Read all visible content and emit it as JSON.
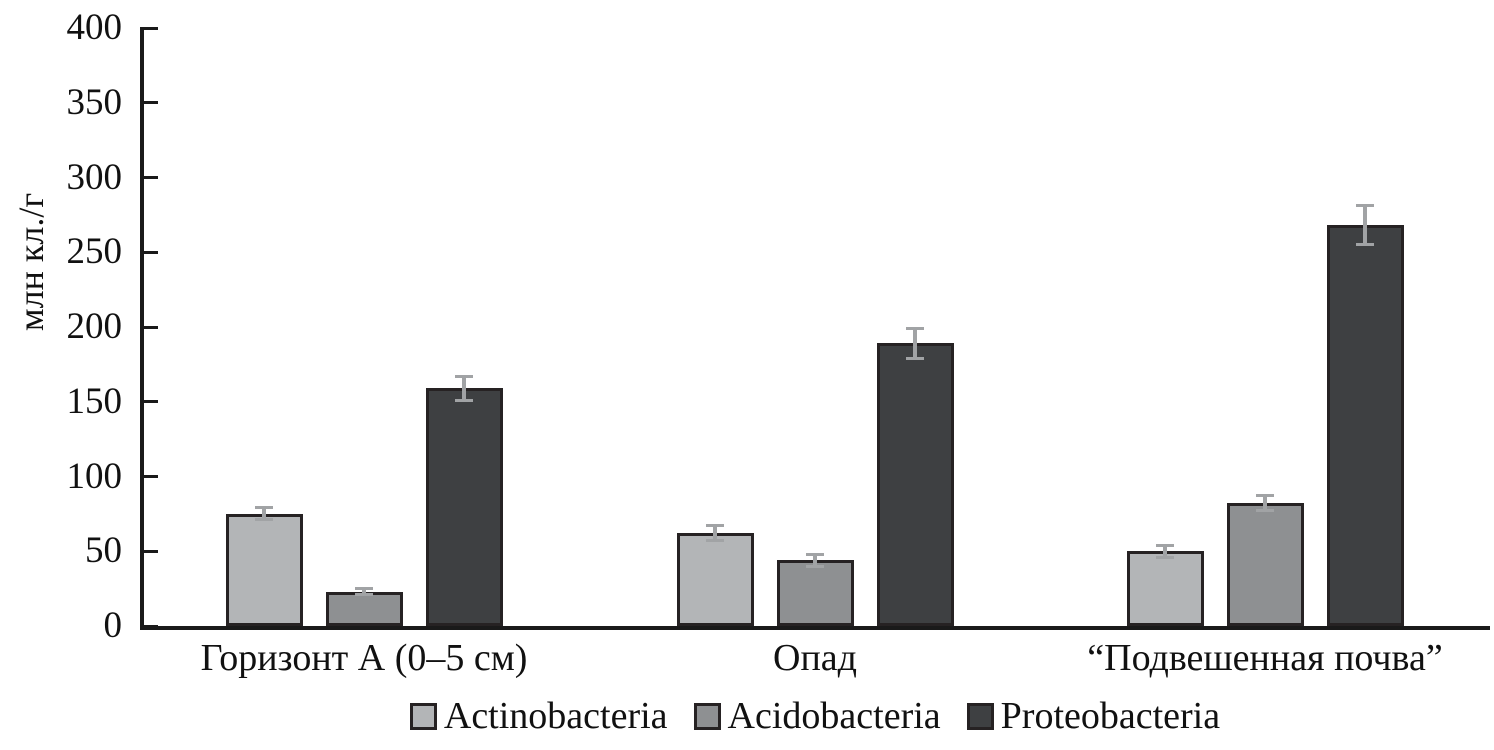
{
  "chart_data": {
    "type": "bar",
    "title": "",
    "ylabel": "млн кл./г",
    "xlabel": "",
    "ylim": [
      0,
      400
    ],
    "yticks": [
      0,
      50,
      100,
      150,
      200,
      250,
      300,
      350,
      400
    ],
    "grid": false,
    "legend_position": "bottom",
    "categories": [
      "Горизонт А (0–5 см)",
      "Опад",
      "“Подвешенная почва”"
    ],
    "series": [
      {
        "name": "Actinobacteria",
        "color": "#b3b5b7",
        "values": [
          75,
          62,
          50
        ],
        "errors": [
          4,
          5,
          4
        ]
      },
      {
        "name": "Acidobacteria",
        "color": "#8e9092",
        "values": [
          23,
          44,
          82
        ],
        "errors": [
          2,
          4,
          5
        ]
      },
      {
        "name": "Proteobacteria",
        "color": "#3e4042",
        "values": [
          159,
          189,
          268
        ],
        "errors": [
          8,
          10,
          13
        ]
      }
    ],
    "colors": {
      "axis": "#1a1a1a",
      "error_bar": "#a1a3a5",
      "bar_border": "#262223"
    }
  }
}
